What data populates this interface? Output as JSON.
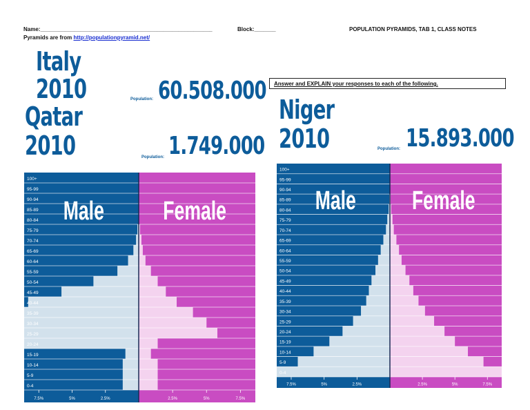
{
  "header": {
    "name_label": "Name:________________________________________________________",
    "block_label": "Block:_______",
    "doc_title": "POPULATION PYRAMIDS, TAB 1, CLASS NOTES",
    "source_prefix": "Pyramids are from ",
    "source_link": "http://populationpyramid.net/"
  },
  "answer_prompt": "Answer and EXPLAIN your responses to each of the following.",
  "colors": {
    "male_bg": "#0d5c9a",
    "female_bg": "#c94cc2",
    "male_fill": "#d2e1ec",
    "female_fill": "#f4d3ef",
    "title": "#0d5c9a"
  },
  "age_groups": [
    "100+",
    "95-99",
    "90-94",
    "85-89",
    "80-84",
    "75-79",
    "70-74",
    "65-69",
    "60-64",
    "55-59",
    "50-54",
    "45-49",
    "40-44",
    "35-39",
    "30-34",
    "25-29",
    "20-24",
    "15-19",
    "10-14",
    "5-9",
    "0-4"
  ],
  "pyramids": [
    {
      "country": "Italy",
      "year": "2010",
      "population_label": "Population:",
      "population": "60.508.000",
      "male_label": "Male",
      "female_label": "Female",
      "axis_ticks": [
        "7.5%",
        "5%",
        "2.5%",
        "2.5%",
        "5%",
        "7.5%"
      ],
      "second_country": "Qatar",
      "second_year": "2010",
      "second_population_label": "Population:",
      "second_population": "1.749.000",
      "chart_data": {
        "type": "area",
        "title": "Qatar 2010",
        "categories": [
          "100+",
          "95-99",
          "90-94",
          "85-89",
          "80-84",
          "75-79",
          "70-74",
          "65-69",
          "60-64",
          "55-59",
          "50-54",
          "45-49",
          "40-44",
          "35-39",
          "30-34",
          "25-29",
          "20-24",
          "15-19",
          "10-14",
          "5-9",
          "0-4"
        ],
        "series": [
          {
            "name": "Male",
            "values": [
              0,
              0,
              0,
              0,
              0,
              0.1,
              0.2,
              0.4,
              0.8,
              1.6,
              3.4,
              5.8,
              8.3,
              8.6,
              8.6,
              8.6,
              8.6,
              1.0,
              1.2,
              1.2,
              1.2
            ]
          },
          {
            "name": "Female",
            "values": [
              0,
              0,
              0,
              0,
              0,
              0.1,
              0.2,
              0.3,
              0.5,
              0.9,
              1.4,
              2.0,
              2.8,
              4.0,
              5.0,
              5.8,
              1.4,
              0.9,
              1.4,
              1.4,
              1.4
            ]
          }
        ],
        "xlim": [
          -8.6,
          8.6
        ]
      }
    },
    {
      "country": "Niger",
      "year": "2010",
      "population_label": "Population:",
      "population": "15.893.000",
      "male_label": "Male",
      "female_label": "Female",
      "axis_ticks": [
        "7.5%",
        "5%",
        "2.5%",
        "2.5%",
        "5%",
        "7.5%"
      ],
      "chart_data": {
        "type": "area",
        "title": "Niger 2010",
        "categories": [
          "100+",
          "95-99",
          "90-94",
          "85-89",
          "80-84",
          "75-79",
          "70-74",
          "65-69",
          "60-64",
          "55-59",
          "50-54",
          "45-49",
          "40-44",
          "35-39",
          "30-34",
          "25-29",
          "20-24",
          "15-19",
          "10-14",
          "5-9",
          "0-4"
        ],
        "series": [
          {
            "name": "Male",
            "values": [
              0,
              0,
              0,
              0.05,
              0.1,
              0.2,
              0.3,
              0.5,
              0.7,
              0.9,
              1.1,
              1.4,
              1.6,
              1.8,
              2.2,
              2.8,
              3.6,
              4.6,
              5.8,
              7.0,
              8.6
            ]
          },
          {
            "name": "Female",
            "values": [
              0,
              0,
              0,
              0.05,
              0.1,
              0.2,
              0.3,
              0.5,
              0.7,
              0.9,
              1.2,
              1.5,
              1.8,
              2.2,
              2.7,
              3.4,
              4.2,
              5.0,
              6.0,
              7.2,
              8.6
            ]
          }
        ],
        "xlim": [
          -8.6,
          8.6
        ]
      }
    }
  ]
}
